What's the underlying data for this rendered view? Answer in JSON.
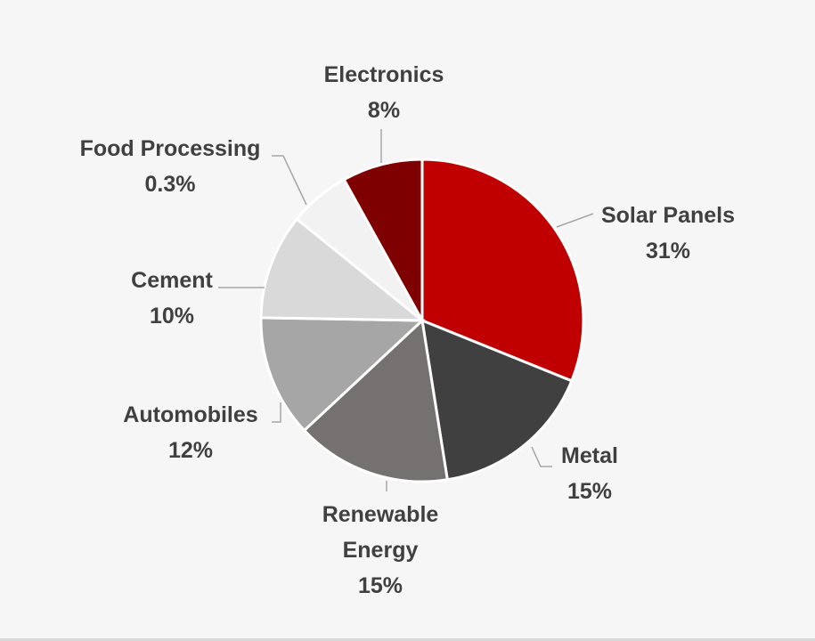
{
  "chart_data": {
    "type": "pie",
    "title": "",
    "start_angle_deg": 0,
    "direction": "clockwise",
    "slices": [
      {
        "label_lines": [
          "Solar Panels"
        ],
        "value": 31,
        "value_label": "31%",
        "color": "#c00000"
      },
      {
        "label_lines": [
          "Metal"
        ],
        "value": 15,
        "value_label": "15%",
        "color": "#404040"
      },
      {
        "label_lines": [
          "Renewable",
          "Energy"
        ],
        "value": 15,
        "value_label": "15%",
        "color": "#767171"
      },
      {
        "label_lines": [
          "Automobiles"
        ],
        "value": 12,
        "value_label": "12%",
        "color": "#a6a6a6"
      },
      {
        "label_lines": [
          "Cement"
        ],
        "value": 10,
        "value_label": "10%",
        "color": "#d9d9d9"
      },
      {
        "label_lines": [
          "Food Processing"
        ],
        "value": 0.3,
        "value_label": "0.3%",
        "color": "#f2f2f2"
      },
      {
        "label_lines": [
          "Electronics"
        ],
        "value": 8,
        "value_label": "8%",
        "color": "#7f0000"
      }
    ]
  }
}
